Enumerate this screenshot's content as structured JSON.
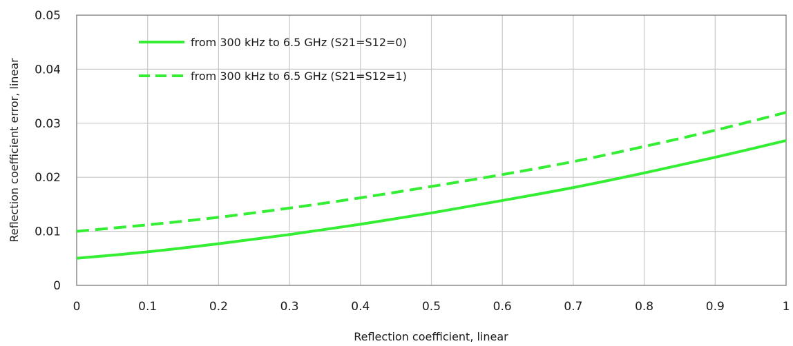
{
  "chart_data": {
    "type": "line",
    "title": "",
    "xlabel": "Reflection coefficient, linear",
    "ylabel": "Reflection coefficient error, linear",
    "xlim": [
      0,
      1
    ],
    "ylim": [
      0,
      0.05
    ],
    "x_ticks": [
      0,
      0.1,
      0.2,
      0.3,
      0.4,
      0.5,
      0.6,
      0.7,
      0.8,
      0.9,
      1
    ],
    "x_tick_labels": [
      "0",
      "0.1",
      "0.2",
      "0.3",
      "0.4",
      "0.5",
      "0.6",
      "0.7",
      "0.8",
      "0.9",
      "1"
    ],
    "y_ticks": [
      0,
      0.01,
      0.02,
      0.03,
      0.04,
      0.05
    ],
    "y_tick_labels": [
      "0",
      "0.01",
      "0.02",
      "0.03",
      "0.04",
      "0.05"
    ],
    "grid": true,
    "legend_position": "top-left",
    "x": [
      0,
      0.1,
      0.2,
      0.3,
      0.4,
      0.5,
      0.6,
      0.7,
      0.8,
      0.9,
      1
    ],
    "series": [
      {
        "name": "from 300 kHz to 6.5 GHz (S21=S12=0)",
        "color": "#33ee33",
        "dash": "solid",
        "values": [
          0.005,
          0.0062,
          0.0077,
          0.0094,
          0.0113,
          0.0134,
          0.0157,
          0.0181,
          0.0208,
          0.0237,
          0.0268
        ]
      },
      {
        "name": "from 300 kHz to 6.5 GHz (S21=S12=1)",
        "color": "#33ee33",
        "dash": "dashed",
        "values": [
          0.01,
          0.0112,
          0.0126,
          0.0143,
          0.0162,
          0.0183,
          0.0205,
          0.0229,
          0.0257,
          0.0287,
          0.032
        ]
      }
    ]
  }
}
